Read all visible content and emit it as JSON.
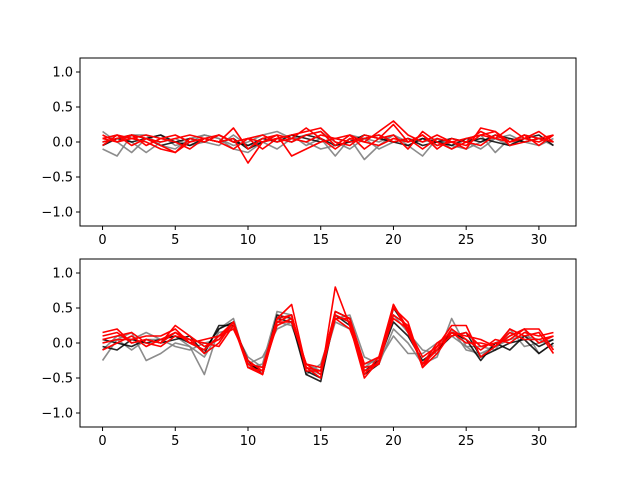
{
  "chart_data": [
    {
      "type": "line",
      "xlim": [
        -1.55,
        32.55
      ],
      "ylim": [
        -1.2,
        1.2
      ],
      "xticks": [
        0,
        5,
        10,
        15,
        20,
        25,
        30
      ],
      "yticks": [
        1.0,
        0.5,
        0.0,
        -0.5,
        -1.0
      ],
      "xtick_labels": [
        "0",
        "5",
        "10",
        "15",
        "20",
        "25",
        "30"
      ],
      "ytick_labels": [
        "1.0",
        "0.5",
        "0.0",
        "−0.5",
        "−1.0"
      ],
      "grid": false,
      "x": [
        0,
        1,
        2,
        3,
        4,
        5,
        6,
        7,
        8,
        9,
        10,
        11,
        12,
        13,
        14,
        15,
        16,
        17,
        18,
        19,
        20,
        21,
        22,
        23,
        24,
        25,
        26,
        27,
        28,
        29,
        30,
        31
      ],
      "series": [
        {
          "color": "#808080",
          "values": [
            0.15,
            0.0,
            -0.15,
            0.05,
            0.1,
            -0.05,
            0.0,
            0.1,
            0.05,
            -0.1,
            -0.15,
            0.0,
            0.05,
            0.1,
            -0.05,
            0.05,
            -0.2,
            0.05,
            -0.25,
            -0.05,
            0.1,
            0.0,
            0.05,
            -0.05,
            0.05,
            0.0,
            -0.1,
            0.05,
            -0.05,
            0.1,
            0.05,
            0.0
          ]
        },
        {
          "color": "#808080",
          "values": [
            -0.1,
            -0.2,
            0.1,
            0.1,
            -0.05,
            -0.1,
            0.05,
            0.1,
            0.05,
            -0.05,
            0.0,
            0.1,
            0.15,
            0.05,
            0.0,
            -0.1,
            -0.05,
            0.1,
            0.05,
            0.0,
            0.1,
            -0.05,
            -0.2,
            0.05,
            -0.1,
            0.05,
            0.1,
            -0.15,
            0.05,
            0.0,
            -0.05,
            0.05
          ]
        },
        {
          "color": "#808080",
          "values": [
            0.05,
            0.1,
            0.0,
            -0.15,
            0.0,
            0.05,
            -0.05,
            0.0,
            -0.05,
            0.1,
            -0.05,
            0.0,
            -0.1,
            0.05,
            0.1,
            0.15,
            0.0,
            -0.1,
            0.05,
            -0.1,
            0.0,
            0.05,
            0.0,
            0.05,
            -0.05,
            -0.1,
            0.0,
            0.05,
            0.1,
            0.0,
            0.05,
            -0.05
          ]
        },
        {
          "color": "#000000",
          "values": [
            0.0,
            0.05,
            0.1,
            0.05,
            -0.05,
            0.0,
            0.05,
            0.0,
            0.1,
            0.0,
            -0.05,
            0.05,
            0.0,
            0.1,
            0.05,
            0.0,
            0.05,
            0.0,
            0.1,
            0.05,
            0.0,
            0.05,
            -0.05,
            0.0,
            0.05,
            0.0,
            0.05,
            0.0,
            -0.05,
            0.05,
            0.1,
            -0.05
          ]
        },
        {
          "color": "#000000",
          "values": [
            -0.05,
            0.05,
            0.0,
            0.05,
            0.1,
            0.0,
            -0.05,
            0.05,
            0.0,
            0.05,
            -0.1,
            0.0,
            0.05,
            0.0,
            0.1,
            0.05,
            -0.05,
            0.0,
            0.05,
            0.1,
            0.0,
            -0.05,
            0.05,
            0.0,
            -0.05,
            0.05,
            0.0,
            0.1,
            0.05,
            0.0,
            0.05,
            0.0
          ]
        },
        {
          "color": "#ff0000",
          "values": [
            0.05,
            0.1,
            0.05,
            0.0,
            -0.1,
            -0.15,
            0.0,
            0.05,
            0.0,
            0.05,
            -0.3,
            0.0,
            0.05,
            0.1,
            0.15,
            0.2,
            0.0,
            -0.05,
            0.1,
            0.05,
            0.25,
            0.0,
            0.1,
            -0.05,
            0.0,
            0.05,
            0.1,
            0.15,
            -0.05,
            0.0,
            0.05,
            0.1
          ]
        },
        {
          "color": "#ff0000",
          "values": [
            -0.05,
            0.1,
            -0.05,
            0.05,
            0.0,
            0.05,
            0.1,
            0.05,
            0.0,
            0.2,
            -0.1,
            0.05,
            0.1,
            -0.2,
            -0.1,
            0.0,
            0.05,
            0.1,
            -0.1,
            0.05,
            0.1,
            -0.1,
            0.15,
            0.0,
            -0.1,
            0.0,
            0.15,
            0.05,
            0.2,
            0.05,
            0.15,
            0.0
          ]
        },
        {
          "color": "#ff0000",
          "values": [
            0.0,
            0.05,
            0.1,
            0.05,
            -0.05,
            -0.15,
            0.05,
            0.0,
            0.1,
            0.0,
            0.05,
            -0.1,
            0.05,
            0.0,
            0.1,
            0.15,
            -0.05,
            0.1,
            0.0,
            0.15,
            0.3,
            0.1,
            0.0,
            0.1,
            0.0,
            -0.05,
            0.1,
            0.05,
            0.0,
            0.1,
            -0.05,
            0.1
          ]
        },
        {
          "color": "#ff0000",
          "values": [
            0.1,
            0.0,
            0.05,
            0.1,
            0.05,
            0.0,
            -0.1,
            0.05,
            0.1,
            0.0,
            0.05,
            0.0,
            0.1,
            0.05,
            0.0,
            0.1,
            0.05,
            0.0,
            0.05,
            0.1,
            0.0,
            0.05,
            -0.1,
            0.05,
            0.0,
            -0.1,
            0.2,
            0.15,
            0.0,
            0.1,
            0.05,
            0.0
          ]
        },
        {
          "color": "#ff0000",
          "values": [
            0.05,
            0.0,
            0.1,
            -0.05,
            0.05,
            0.1,
            0.0,
            0.05,
            0.0,
            -0.1,
            0.05,
            0.1,
            0.0,
            0.05,
            0.2,
            0.05,
            -0.1,
            0.05,
            0.0,
            -0.05,
            0.05,
            0.0,
            0.1,
            -0.1,
            0.05,
            0.0,
            -0.05,
            0.1,
            0.0,
            0.05,
            0.0,
            0.1
          ]
        }
      ]
    },
    {
      "type": "line",
      "xlim": [
        -1.55,
        32.55
      ],
      "ylim": [
        -1.2,
        1.2
      ],
      "xticks": [
        0,
        5,
        10,
        15,
        20,
        25,
        30
      ],
      "yticks": [
        1.0,
        0.5,
        0.0,
        -0.5,
        -1.0
      ],
      "xtick_labels": [
        "0",
        "5",
        "10",
        "15",
        "20",
        "25",
        "30"
      ],
      "ytick_labels": [
        "1.0",
        "0.5",
        "0.0",
        "−0.5",
        "−1.0"
      ],
      "grid": false,
      "x": [
        0,
        1,
        2,
        3,
        4,
        5,
        6,
        7,
        8,
        9,
        10,
        11,
        12,
        13,
        14,
        15,
        16,
        17,
        18,
        19,
        20,
        21,
        22,
        23,
        24,
        25,
        26,
        27,
        28,
        29,
        30,
        31
      ],
      "series": [
        {
          "color": "#808080",
          "values": [
            -0.25,
            0.05,
            0.15,
            -0.25,
            -0.15,
            0.0,
            -0.05,
            -0.45,
            0.2,
            0.35,
            -0.35,
            -0.3,
            0.45,
            0.4,
            -0.45,
            -0.3,
            0.35,
            0.4,
            -0.2,
            -0.3,
            0.2,
            0.0,
            -0.3,
            -0.2,
            0.35,
            -0.05,
            -0.2,
            0.0,
            0.1,
            0.2,
            -0.15,
            0.0
          ]
        },
        {
          "color": "#808080",
          "values": [
            0.0,
            0.05,
            -0.1,
            0.05,
            0.05,
            0.1,
            -0.05,
            -0.2,
            0.15,
            0.2,
            -0.2,
            -0.35,
            0.3,
            0.25,
            -0.3,
            -0.4,
            0.3,
            0.2,
            -0.3,
            -0.25,
            0.1,
            -0.15,
            -0.15,
            0.0,
            0.1,
            -0.05,
            -0.05,
            -0.1,
            0.2,
            -0.05,
            0.0,
            0.05
          ]
        },
        {
          "color": "#808080",
          "values": [
            -0.1,
            0.1,
            0.05,
            0.15,
            0.05,
            -0.05,
            -0.1,
            0.0,
            0.05,
            0.25,
            -0.3,
            -0.2,
            0.2,
            0.3,
            -0.35,
            -0.45,
            0.4,
            0.3,
            -0.35,
            -0.2,
            0.4,
            0.15,
            -0.1,
            -0.15,
            0.2,
            -0.1,
            -0.15,
            -0.05,
            0.05,
            0.1,
            0.05,
            -0.05
          ]
        },
        {
          "color": "#000000",
          "values": [
            -0.05,
            -0.1,
            0.05,
            0.0,
            0.05,
            0.1,
            0.0,
            -0.1,
            0.2,
            0.3,
            -0.3,
            -0.4,
            0.4,
            0.35,
            -0.4,
            -0.5,
            0.45,
            0.35,
            -0.45,
            -0.3,
            0.5,
            0.2,
            -0.3,
            -0.1,
            0.1,
            0.15,
            -0.2,
            -0.1,
            0.0,
            0.05,
            -0.15,
            0.0
          ]
        },
        {
          "color": "#000000",
          "values": [
            0.05,
            0.0,
            -0.05,
            0.05,
            0.0,
            0.05,
            0.1,
            -0.15,
            0.25,
            0.25,
            -0.25,
            -0.45,
            0.35,
            0.3,
            -0.45,
            -0.55,
            0.4,
            0.25,
            -0.4,
            -0.25,
            0.3,
            0.1,
            -0.25,
            -0.1,
            0.15,
            0.05,
            -0.25,
            0.0,
            -0.1,
            0.1,
            -0.05,
            0.05
          ]
        },
        {
          "color": "#ff0000",
          "values": [
            0.1,
            0.15,
            0.0,
            0.05,
            0.0,
            0.25,
            0.1,
            -0.05,
            0.05,
            0.3,
            -0.35,
            -0.45,
            0.35,
            0.55,
            -0.35,
            -0.5,
            0.8,
            0.25,
            -0.5,
            -0.25,
            0.5,
            0.3,
            -0.35,
            -0.05,
            0.25,
            0.25,
            -0.2,
            -0.05,
            0.2,
            0.1,
            0.15,
            -0.15
          ]
        },
        {
          "color": "#ff0000",
          "values": [
            -0.1,
            0.0,
            0.1,
            -0.05,
            0.05,
            0.15,
            0.0,
            -0.1,
            0.1,
            0.2,
            -0.25,
            -0.4,
            0.3,
            0.4,
            -0.4,
            -0.4,
            0.4,
            0.3,
            -0.45,
            -0.2,
            0.35,
            0.2,
            -0.3,
            0.0,
            0.15,
            0.1,
            0.05,
            -0.05,
            0.1,
            0.2,
            0.2,
            -0.1
          ]
        },
        {
          "color": "#ff0000",
          "values": [
            0.05,
            0.1,
            0.15,
            0.0,
            -0.05,
            0.1,
            0.05,
            0.0,
            -0.05,
            0.25,
            -0.35,
            -0.4,
            0.25,
            0.35,
            -0.3,
            -0.45,
            0.35,
            0.2,
            -0.35,
            -0.3,
            0.55,
            0.15,
            -0.3,
            -0.1,
            0.2,
            0.05,
            -0.1,
            0.05,
            0.0,
            0.15,
            0.1,
            0.15
          ]
        },
        {
          "color": "#ff0000",
          "values": [
            0.0,
            0.05,
            0.05,
            0.1,
            0.1,
            0.2,
            0.0,
            0.05,
            0.1,
            0.3,
            -0.3,
            -0.45,
            0.3,
            0.3,
            -0.3,
            -0.35,
            0.45,
            0.35,
            -0.4,
            -0.3,
            0.4,
            0.25,
            -0.35,
            -0.15,
            0.15,
            0.0,
            0.0,
            -0.05,
            0.15,
            0.05,
            0.05,
            0.1
          ]
        },
        {
          "color": "#ff0000",
          "values": [
            0.15,
            0.2,
            0.0,
            0.05,
            0.0,
            0.15,
            0.05,
            -0.15,
            0.0,
            0.3,
            -0.3,
            -0.35,
            0.35,
            0.4,
            -0.35,
            -0.4,
            0.35,
            0.35,
            -0.3,
            -0.2,
            0.55,
            0.2,
            -0.2,
            -0.05,
            0.1,
            0.15,
            -0.05,
            0.0,
            0.05,
            0.2,
            0.0,
            0.1
          ]
        }
      ]
    }
  ]
}
